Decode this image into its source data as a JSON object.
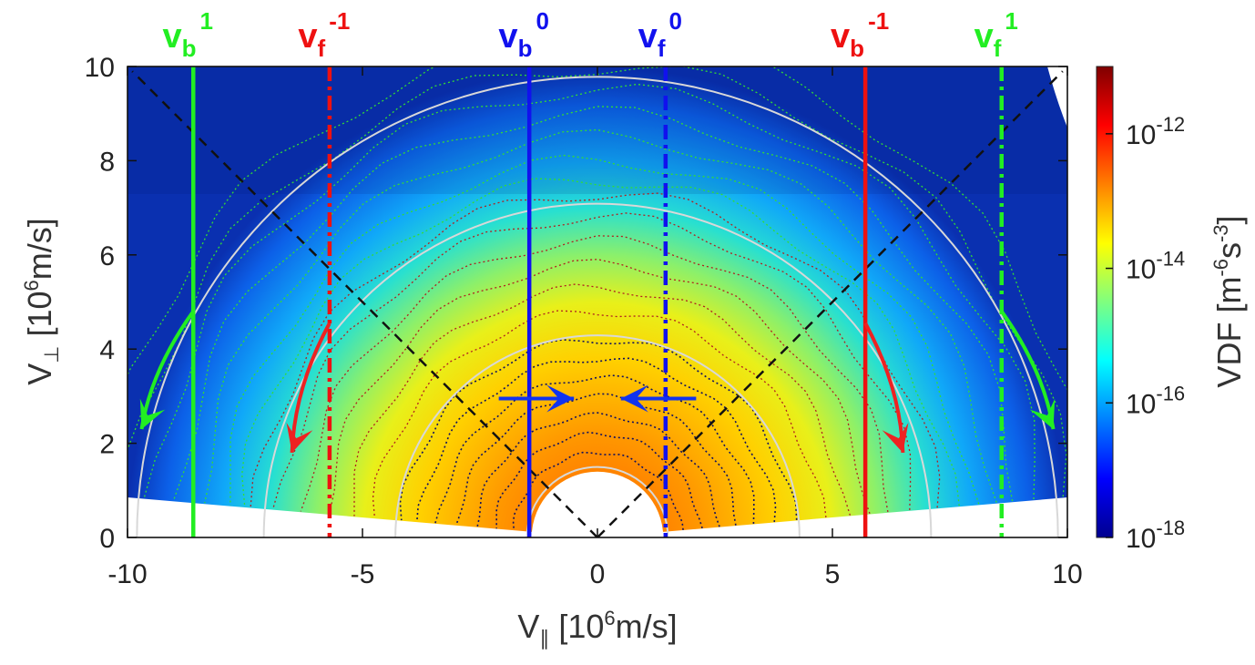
{
  "chart_data": {
    "type": "heatmap",
    "title": "",
    "x": {
      "label_main": "V",
      "label_sub": "∥",
      "label_rest": " [10",
      "label_sup": "6",
      "label_unit": "m/s]",
      "lim": [
        -10,
        10
      ],
      "ticks": [
        -10,
        -5,
        0,
        5,
        10
      ],
      "tick_labels": [
        "-10",
        "-5",
        "0",
        "5",
        "10"
      ]
    },
    "y": {
      "label_main": "V",
      "label_sub": "⊥",
      "label_rest": " [10",
      "label_sup": "6",
      "label_unit": "m/s]",
      "lim": [
        0,
        10
      ],
      "ticks": [
        0,
        2,
        4,
        6,
        8,
        10
      ],
      "tick_labels": [
        "0",
        "2",
        "4",
        "6",
        "8",
        "10"
      ]
    },
    "colorbar": {
      "label_pre": "VDF [m",
      "label_sup1": "-6",
      "label_mid": "s",
      "label_sup2": "-3",
      "label_post": "]",
      "scale": "log",
      "range_log10": [
        -18,
        -11
      ],
      "colormap": "jet",
      "tick_exponents": [
        -12,
        -14,
        -16,
        -18
      ],
      "tick_base": "10",
      "tick_sups": [
        "-12",
        "-14",
        "-16",
        "-18"
      ]
    },
    "resonance_lines": [
      {
        "label": "v",
        "sub": "b",
        "sup": "1",
        "x": -8.6,
        "style": "solid",
        "color": "#22ee22"
      },
      {
        "label": "v",
        "sub": "f",
        "sup": "-1",
        "x": -5.7,
        "style": "dashdot",
        "color": "#ee1111"
      },
      {
        "label": "v",
        "sub": "b",
        "sup": "0",
        "x": -1.45,
        "style": "solid",
        "color": "#1111ee"
      },
      {
        "label": "v",
        "sub": "f",
        "sup": "0",
        "x": 1.45,
        "style": "dashdot",
        "color": "#1111ee"
      },
      {
        "label": "v",
        "sub": "b",
        "sup": "-1",
        "x": 5.7,
        "style": "solid",
        "color": "#ee1111"
      },
      {
        "label": "v",
        "sub": "f",
        "sup": "1",
        "x": 8.6,
        "style": "dashdot",
        "color": "#22ee22"
      }
    ],
    "pitch_angle_cone_deg": 45,
    "energy_circles_radius": [
      1.5,
      4.3,
      7.1,
      9.8
    ],
    "contour_radii": {
      "green": [
        7.6,
        8.0,
        8.5,
        9.0,
        9.5,
        10.0,
        10.5
      ],
      "red": [
        4.8,
        5.3,
        5.8,
        6.3,
        6.8,
        7.3
      ],
      "darkblue": [
        1.8,
        2.2,
        2.6,
        3.0,
        3.4,
        3.8,
        4.2
      ]
    },
    "excluded_low_energy_radius": 1.4,
    "diffusion_arrows": [
      {
        "color": "#1133ee",
        "from": [
          -2.1,
          2.95
        ],
        "to": [
          -0.5,
          2.95
        ]
      },
      {
        "color": "#1133ee",
        "from": [
          2.1,
          2.95
        ],
        "to": [
          0.5,
          2.95
        ]
      },
      {
        "color": "#ee2222",
        "from": [
          -5.7,
          4.55
        ],
        "to": [
          -6.5,
          1.8
        ]
      },
      {
        "color": "#ee2222",
        "from": [
          5.7,
          4.55
        ],
        "to": [
          6.5,
          1.8
        ]
      },
      {
        "color": "#22ee22",
        "from": [
          -8.6,
          4.8
        ],
        "to": [
          -9.7,
          2.3
        ]
      },
      {
        "color": "#22ee22",
        "from": [
          8.6,
          4.8
        ],
        "to": [
          9.7,
          2.3
        ]
      }
    ]
  }
}
